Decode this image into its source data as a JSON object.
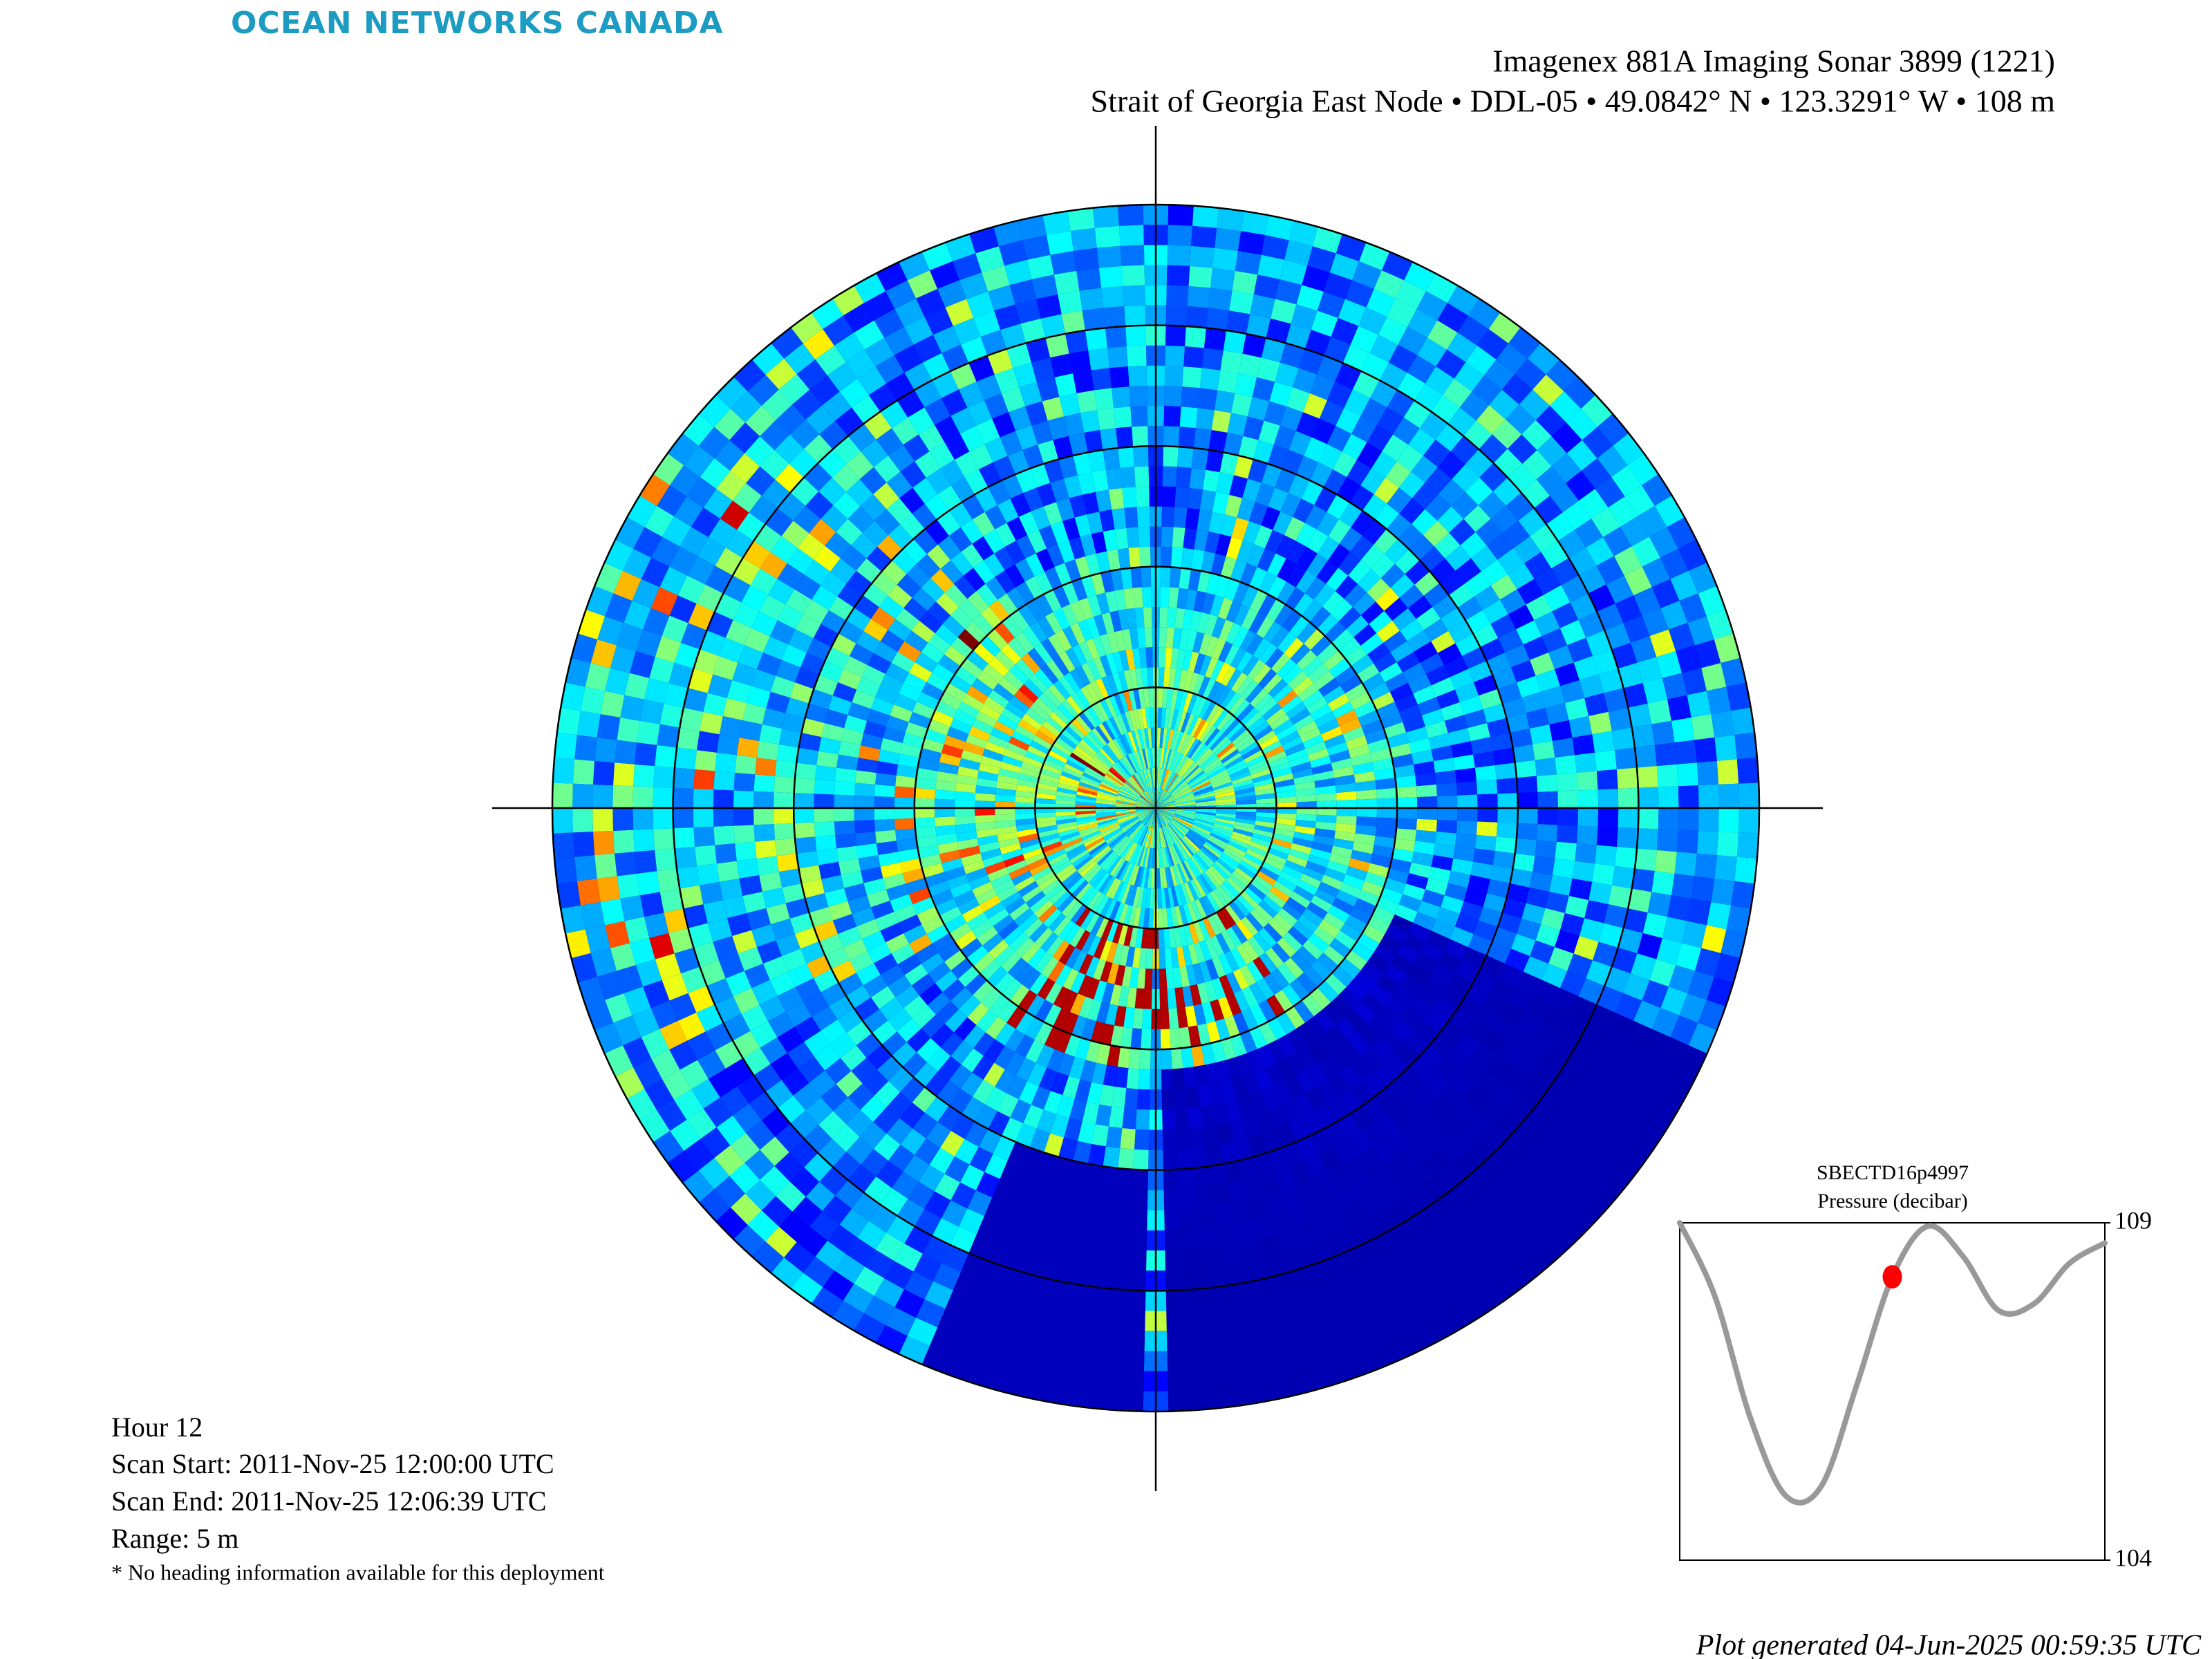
{
  "header": {
    "logo": "OCEAN NETWORKS CANADA",
    "title": "Imagenex 881A Imaging Sonar 3899 (1221)",
    "subtitle": "Strait of Georgia East Node • DDL-05 • 49.0842° N • 123.3291° W • 108 m"
  },
  "info": {
    "hour": "Hour 12",
    "scan_start": "Scan Start: 2011-Nov-25 12:00:00 UTC",
    "scan_end": "Scan End: 2011-Nov-25 12:06:39 UTC",
    "range": "Range: 5 m",
    "note": "* No heading information available for this deployment"
  },
  "footer": "Plot generated 04-Jun-2025 00:59:35 UTC",
  "chart_data": {
    "type": "line",
    "title": "SBECTD16p4997",
    "subtitle": "Pressure (decibar)",
    "values": [
      109.0,
      107.9,
      106.1,
      104.95,
      105.1,
      106.6,
      108.2,
      108.95,
      108.5,
      107.7,
      107.8,
      108.4,
      108.7
    ],
    "color": "#999999",
    "highlight": {
      "index": 6,
      "color": "#ff0000"
    },
    "ylim": [
      104,
      109
    ],
    "yticks": [
      104,
      109
    ]
  }
}
